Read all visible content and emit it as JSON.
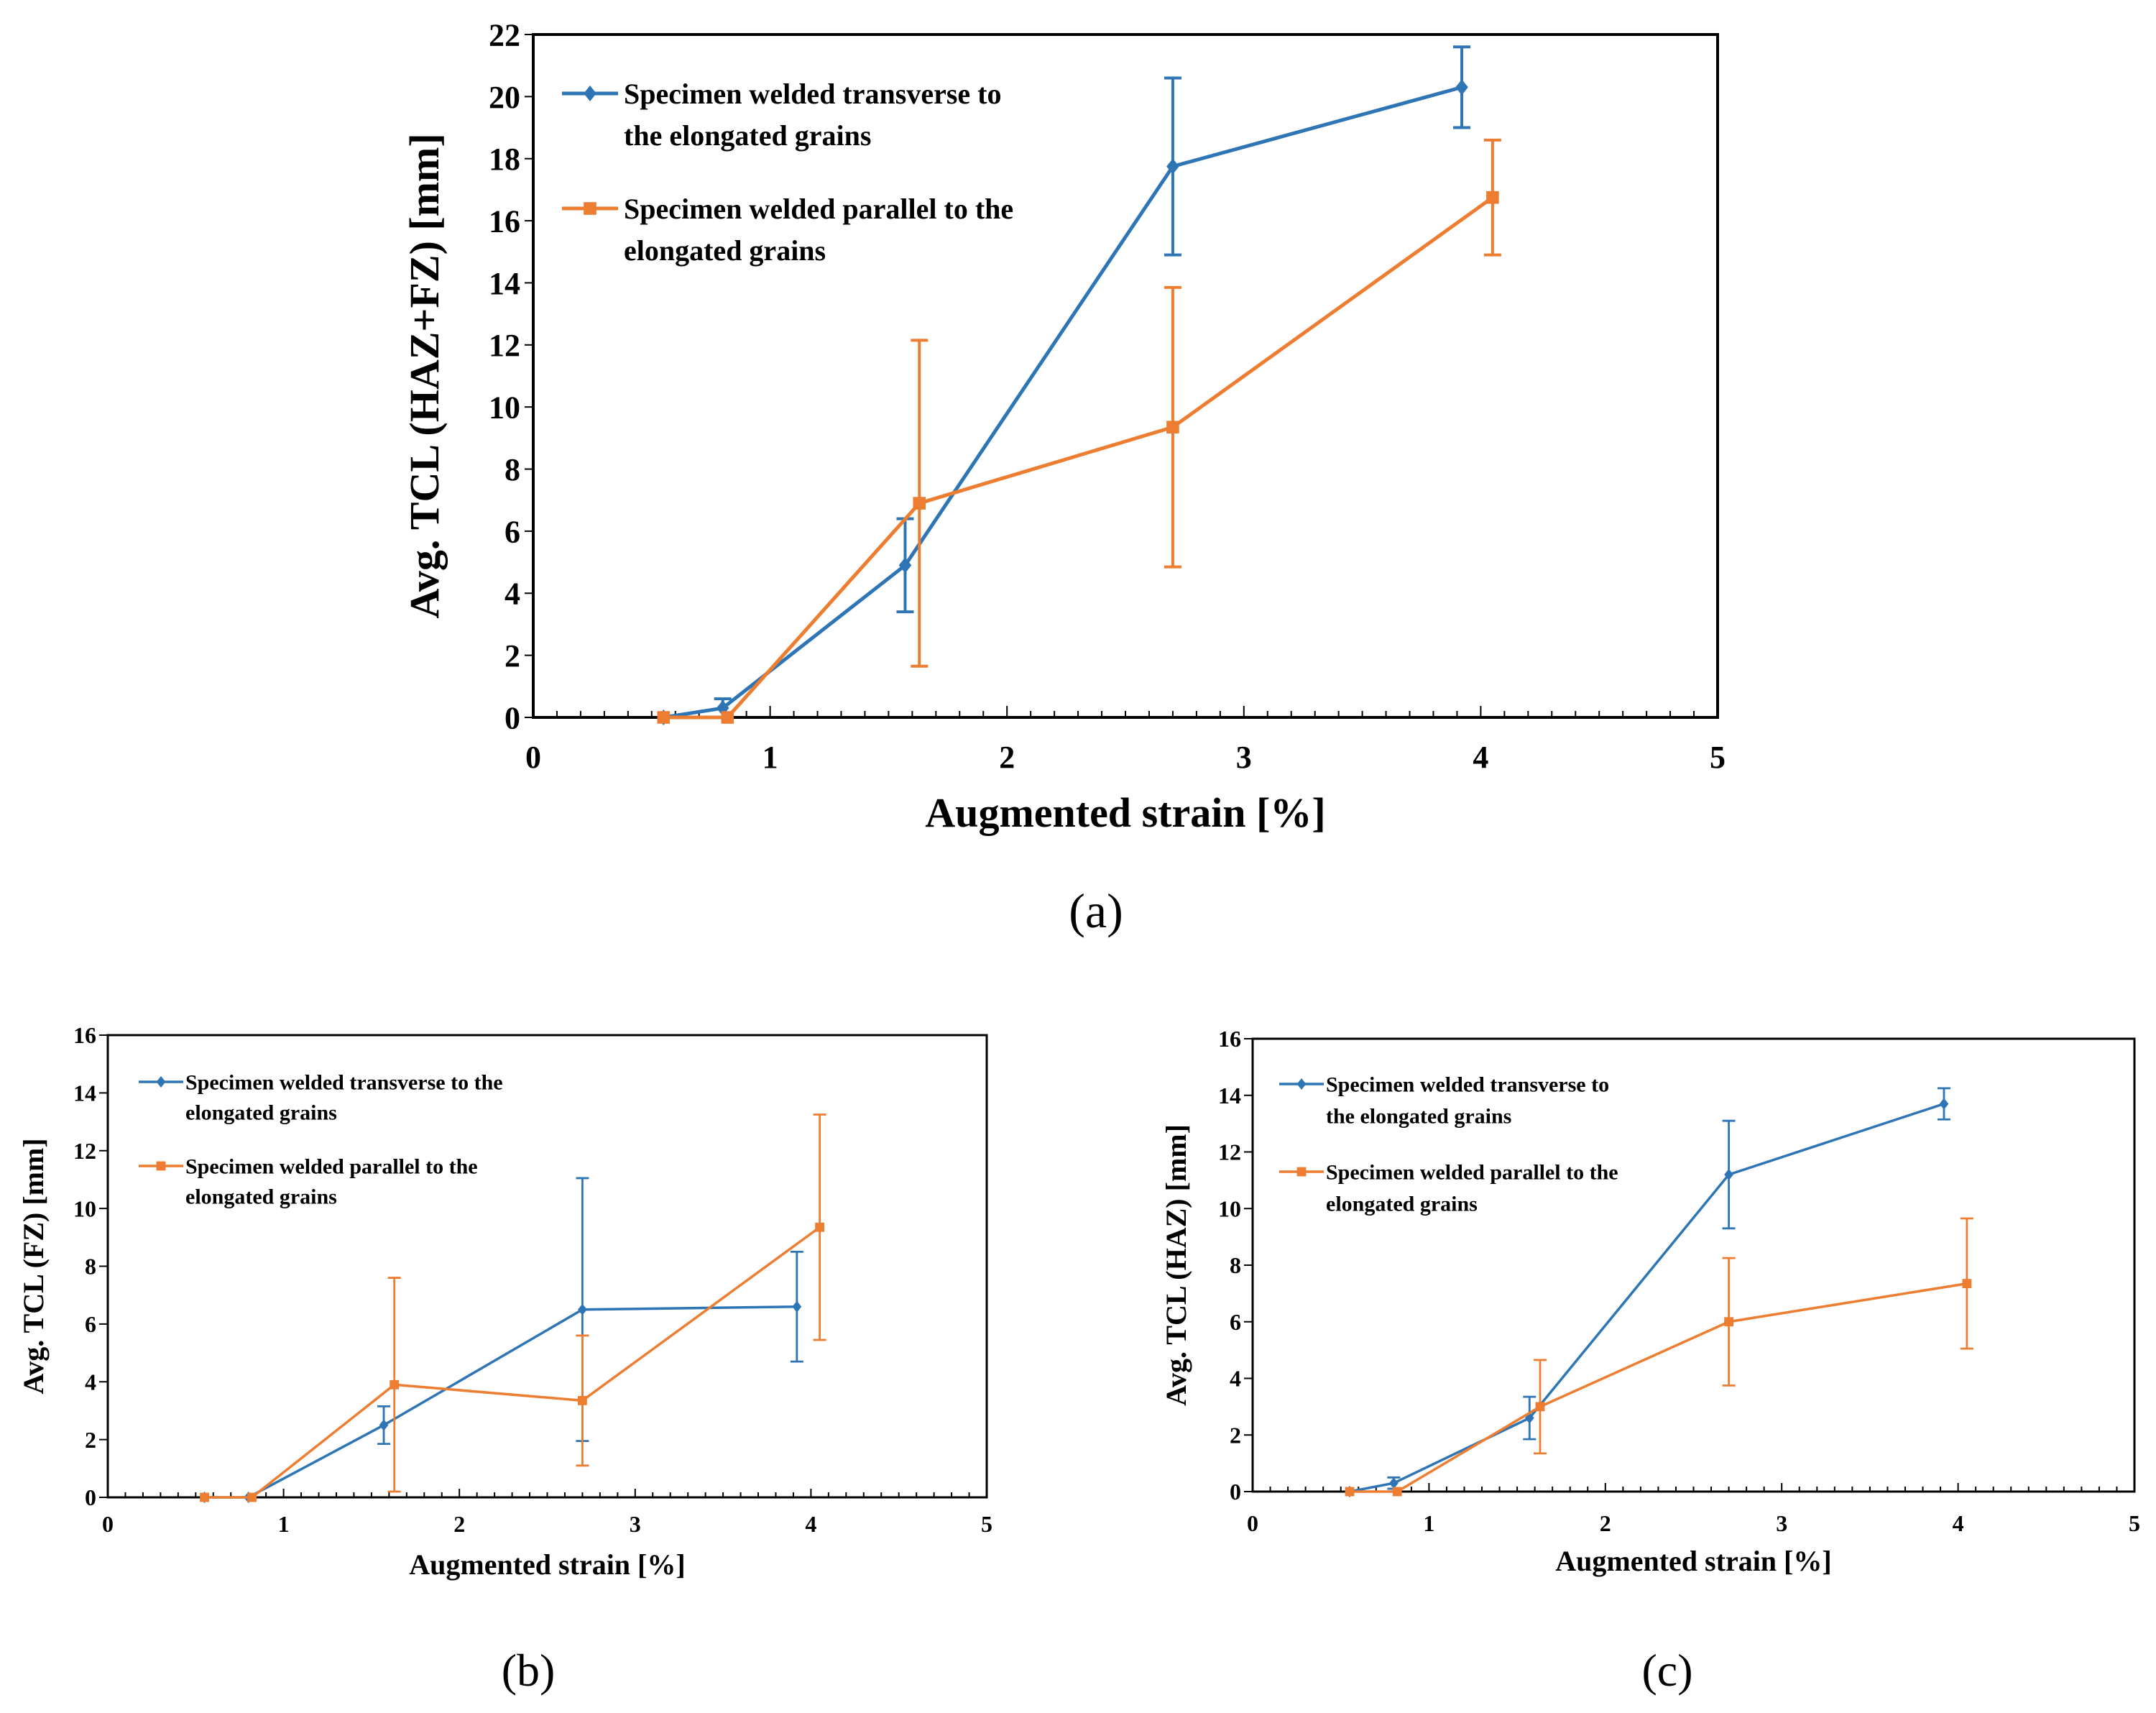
{
  "chart_data": [
    {
      "type": "line",
      "panel_label": "(a)",
      "xlabel": "Augmented strain [%]",
      "ylabel": "Avg. TCL (HAZ+FZ) [mm]",
      "xlim": [
        0,
        5
      ],
      "ylim": [
        0,
        22
      ],
      "xticks": [
        "0",
        "1",
        "2",
        "3",
        "4",
        "5"
      ],
      "yticks": [
        "0",
        "2",
        "4",
        "6",
        "8",
        "10",
        "12",
        "14",
        "16",
        "18",
        "20",
        "22"
      ],
      "xtick_values": [
        0,
        1,
        2,
        3,
        4,
        5
      ],
      "ytick_values": [
        0,
        2,
        4,
        6,
        8,
        10,
        12,
        14,
        16,
        18,
        20,
        22
      ],
      "legend_position": "top-left",
      "series": [
        {
          "name_lines": [
            "Specimen welded transverse to",
            "the elongated grains"
          ],
          "color": "#2E75B6",
          "marker": "diamond",
          "x": [
            0.55,
            0.8,
            1.57,
            2.7,
            3.92
          ],
          "y": [
            0.0,
            0.3,
            4.9,
            17.75,
            20.3
          ],
          "err": [
            0.0,
            0.3,
            1.5,
            2.85,
            1.3
          ]
        },
        {
          "name_lines": [
            "Specimen welded parallel to the",
            "elongated grains"
          ],
          "color": "#ED7D31",
          "marker": "square",
          "x": [
            0.55,
            0.82,
            1.63,
            2.7,
            4.05
          ],
          "y": [
            0.0,
            0.0,
            6.9,
            9.35,
            16.75
          ],
          "err": [
            0.0,
            0.0,
            5.25,
            4.5,
            1.85
          ]
        }
      ]
    },
    {
      "type": "line",
      "panel_label": "(b)",
      "xlabel": "Augmented strain [%]",
      "ylabel": "Avg. TCL (FZ) [mm]",
      "xlim": [
        0,
        5
      ],
      "ylim": [
        0,
        16
      ],
      "xticks": [
        "0",
        "1",
        "2",
        "3",
        "4",
        "5"
      ],
      "yticks": [
        "0",
        "2",
        "4",
        "6",
        "8",
        "10",
        "12",
        "14",
        "16"
      ],
      "xtick_values": [
        0,
        1,
        2,
        3,
        4,
        5
      ],
      "ytick_values": [
        0,
        2,
        4,
        6,
        8,
        10,
        12,
        14,
        16
      ],
      "legend_position": "top-left",
      "series": [
        {
          "name_lines": [
            "Specimen welded transverse to the",
            "elongated grains"
          ],
          "color": "#2E75B6",
          "marker": "diamond",
          "x": [
            0.55,
            0.8,
            1.57,
            2.7,
            3.92
          ],
          "y": [
            0.0,
            0.0,
            2.5,
            6.5,
            6.6
          ],
          "err": [
            0.0,
            0.0,
            0.65,
            4.55,
            1.9
          ]
        },
        {
          "name_lines": [
            "Specimen welded parallel to the",
            "elongated grains"
          ],
          "color": "#ED7D31",
          "marker": "square",
          "x": [
            0.55,
            0.82,
            1.63,
            2.7,
            4.05
          ],
          "y": [
            0.0,
            0.0,
            3.9,
            3.35,
            9.35
          ],
          "err": [
            0.0,
            0.0,
            3.7,
            2.25,
            3.9
          ]
        }
      ]
    },
    {
      "type": "line",
      "panel_label": "(c)",
      "xlabel": "Augmented strain [%]",
      "ylabel": "Avg. TCL (HAZ) [mm]",
      "xlim": [
        0,
        5
      ],
      "ylim": [
        0,
        16
      ],
      "xticks": [
        "0",
        "1",
        "2",
        "3",
        "4",
        "5"
      ],
      "yticks": [
        "0",
        "2",
        "4",
        "6",
        "8",
        "10",
        "12",
        "14",
        "16"
      ],
      "xtick_values": [
        0,
        1,
        2,
        3,
        4,
        5
      ],
      "ytick_values": [
        0,
        2,
        4,
        6,
        8,
        10,
        12,
        14,
        16
      ],
      "legend_position": "top-left",
      "series": [
        {
          "name_lines": [
            "Specimen welded transverse to",
            "the elongated grains"
          ],
          "color": "#2E75B6",
          "marker": "diamond",
          "x": [
            0.55,
            0.8,
            1.57,
            2.7,
            3.92
          ],
          "y": [
            0.0,
            0.3,
            2.6,
            11.2,
            13.7
          ],
          "err": [
            0.0,
            0.2,
            0.75,
            1.9,
            0.55
          ]
        },
        {
          "name_lines": [
            "Specimen welded parallel to the",
            "elongated grains"
          ],
          "color": "#ED7D31",
          "marker": "square",
          "x": [
            0.55,
            0.82,
            1.63,
            2.7,
            4.05
          ],
          "y": [
            0.0,
            0.0,
            3.0,
            6.0,
            7.35
          ],
          "err": [
            0.0,
            0.0,
            1.65,
            2.25,
            2.3
          ]
        }
      ]
    }
  ]
}
